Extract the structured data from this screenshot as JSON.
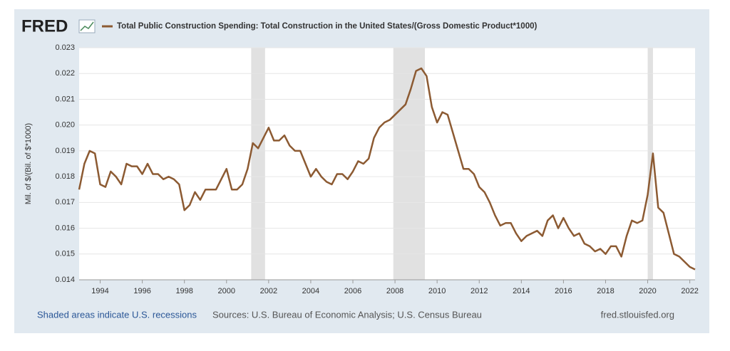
{
  "chart_data": {
    "type": "line",
    "logo": "FRED",
    "title": "Total Public Construction Spending: Total Construction in the United States/(Gross Domestic Product*1000)",
    "y_label": "Mil. of $/(Bil. of $*1000)",
    "recession_note": "Shaded areas indicate U.S. recessions",
    "source": "Sources: U.S. Bureau of Economic Analysis; U.S. Census Bureau",
    "site": "fred.stlouisfed.org",
    "x": [
      1993,
      1993.25,
      1993.5,
      1993.75,
      1994,
      1994.25,
      1994.5,
      1994.75,
      1995,
      1995.25,
      1995.5,
      1995.75,
      1996,
      1996.25,
      1996.5,
      1996.75,
      1997,
      1997.25,
      1997.5,
      1997.75,
      1998,
      1998.25,
      1998.5,
      1998.75,
      1999,
      1999.25,
      1999.5,
      1999.75,
      2000,
      2000.25,
      2000.5,
      2000.75,
      2001,
      2001.25,
      2001.5,
      2001.75,
      2002,
      2002.25,
      2002.5,
      2002.75,
      2003,
      2003.25,
      2003.5,
      2003.75,
      2004,
      2004.25,
      2004.5,
      2004.75,
      2005,
      2005.25,
      2005.5,
      2005.75,
      2006,
      2006.25,
      2006.5,
      2006.75,
      2007,
      2007.25,
      2007.5,
      2007.75,
      2008,
      2008.25,
      2008.5,
      2008.75,
      2009,
      2009.25,
      2009.5,
      2009.75,
      2010,
      2010.25,
      2010.5,
      2010.75,
      2011,
      2011.25,
      2011.5,
      2011.75,
      2012,
      2012.25,
      2012.5,
      2012.75,
      2013,
      2013.25,
      2013.5,
      2013.75,
      2014,
      2014.25,
      2014.5,
      2014.75,
      2015,
      2015.25,
      2015.5,
      2015.75,
      2016,
      2016.25,
      2016.5,
      2016.75,
      2017,
      2017.25,
      2017.5,
      2017.75,
      2018,
      2018.25,
      2018.5,
      2018.75,
      2019,
      2019.25,
      2019.5,
      2019.75,
      2020,
      2020.25,
      2020.5,
      2020.75,
      2021,
      2021.25,
      2021.5,
      2021.75,
      2022,
      2022.25
    ],
    "series": [
      {
        "name": "Total Public Construction Spending: Total Construction in the United States/(Gross Domestic Product*1000)",
        "color": "#8c5a32",
        "values": [
          0.0175,
          0.0185,
          0.019,
          0.0189,
          0.0177,
          0.0176,
          0.0182,
          0.018,
          0.0177,
          0.0185,
          0.0184,
          0.0184,
          0.0181,
          0.0185,
          0.0181,
          0.0181,
          0.0179,
          0.018,
          0.0179,
          0.0177,
          0.0167,
          0.0169,
          0.0174,
          0.0171,
          0.0175,
          0.0175,
          0.0175,
          0.0179,
          0.0183,
          0.0175,
          0.0175,
          0.0177,
          0.0183,
          0.0193,
          0.0191,
          0.0195,
          0.0199,
          0.0194,
          0.0194,
          0.0196,
          0.0192,
          0.019,
          0.019,
          0.0185,
          0.018,
          0.0183,
          0.018,
          0.0178,
          0.0177,
          0.0181,
          0.0181,
          0.0179,
          0.0182,
          0.0186,
          0.0185,
          0.0187,
          0.0195,
          0.0199,
          0.0201,
          0.0202,
          0.0204,
          0.0206,
          0.0208,
          0.0214,
          0.0221,
          0.0222,
          0.0219,
          0.0207,
          0.0201,
          0.0205,
          0.0204,
          0.0197,
          0.019,
          0.0183,
          0.0183,
          0.0181,
          0.0176,
          0.0174,
          0.017,
          0.0165,
          0.0161,
          0.0162,
          0.0162,
          0.0158,
          0.0155,
          0.0157,
          0.0158,
          0.0159,
          0.0157,
          0.0163,
          0.0165,
          0.016,
          0.0164,
          0.016,
          0.0157,
          0.0158,
          0.0154,
          0.0153,
          0.0151,
          0.0152,
          0.015,
          0.0153,
          0.0153,
          0.0149,
          0.0157,
          0.0163,
          0.0162,
          0.0163,
          0.0173,
          0.0189,
          0.0168,
          0.0166,
          0.0158,
          0.015,
          0.0149,
          0.0147,
          0.0145,
          0.0144
        ]
      }
    ],
    "recessions": [
      [
        2001.17,
        2001.83
      ],
      [
        2007.92,
        2009.42
      ],
      [
        2020.0,
        2020.25
      ]
    ],
    "xlim": [
      1993,
      2022.25
    ],
    "xticks": [
      1994,
      1996,
      1998,
      2000,
      2002,
      2004,
      2006,
      2008,
      2010,
      2012,
      2014,
      2016,
      2018,
      2020,
      2022
    ],
    "ylim": [
      0.014,
      0.023
    ],
    "yticks": [
      0.014,
      0.015,
      0.016,
      0.017,
      0.018,
      0.019,
      {
        "value": 0.02,
        "label": "0.020"
      },
      0.021,
      0.022,
      0.023
    ],
    "grid": true
  }
}
